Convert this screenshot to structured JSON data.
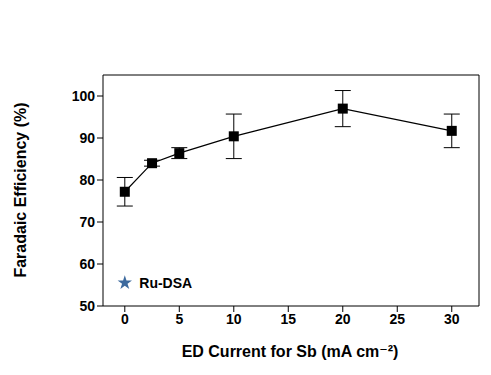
{
  "chart_data": {
    "type": "line",
    "x": [
      0,
      2.5,
      5,
      10,
      20,
      30
    ],
    "values": [
      77.2,
      84.0,
      86.4,
      90.4,
      97.0,
      91.7
    ],
    "error": [
      3.4,
      0.7,
      1.3,
      5.3,
      4.3,
      4.0
    ],
    "color": "#000000",
    "marker": "square",
    "line_style": "solid",
    "x_label": "ED Current for Sb (mA cm⁻²)",
    "y_label": "Faradaic Efficiency (%)",
    "xlim": [
      -2,
      32.5
    ],
    "ylim": [
      50,
      105
    ],
    "xticks": [
      0,
      5,
      10,
      15,
      20,
      25,
      30
    ],
    "yticks": [
      50,
      60,
      70,
      80,
      90,
      100
    ],
    "grid": false,
    "annotations": [
      {
        "text": "Ru-DSA",
        "x": 0,
        "y": 55.5,
        "marker": "star",
        "color": "#3d6a9e"
      }
    ]
  }
}
